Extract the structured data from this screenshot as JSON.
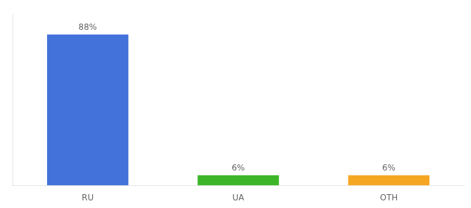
{
  "chart_data": {
    "type": "bar",
    "categories": [
      "RU",
      "UA",
      "OTH"
    ],
    "values": [
      88,
      6,
      6
    ],
    "value_labels": [
      "88%",
      "6%",
      "6%"
    ],
    "colors": [
      "#4472db",
      "#3cb628",
      "#f5a623"
    ],
    "ylim": [
      0,
      100
    ],
    "yticks": [],
    "grid": false,
    "tick_labels": "x",
    "data_labels": true
  }
}
